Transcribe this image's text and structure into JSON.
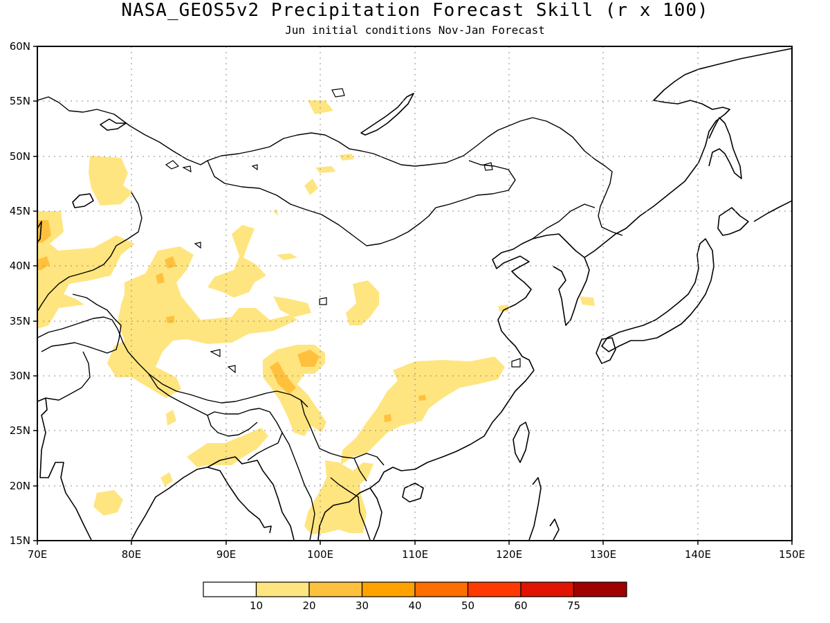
{
  "title": "NASA_GEOS5v2 Precipitation Forecast Skill (r x 100)",
  "subtitle": "Jun initial conditions  Nov-Jan Forecast",
  "map": {
    "lon_range": [
      70,
      150
    ],
    "lat_range": [
      15,
      60
    ],
    "lon_ticks": [
      "70E",
      "80E",
      "90E",
      "100E",
      "110E",
      "120E",
      "130E",
      "140E",
      "150E"
    ],
    "lat_ticks": [
      "60N",
      "55N",
      "50N",
      "45N",
      "40N",
      "35N",
      "30N",
      "25N",
      "20N",
      "15N"
    ],
    "gridlines": true
  },
  "legend": {
    "colors": [
      "#ffffff",
      "#ffe57f",
      "#ffc13d",
      "#ffa200",
      "#ff6e00",
      "#ff3a00",
      "#e01400",
      "#a00000"
    ],
    "labels": [
      "10",
      "20",
      "30",
      "40",
      "50",
      "60",
      "75"
    ]
  },
  "contours": [
    {
      "level": "10-20",
      "color": "#ffe57f"
    },
    {
      "level": "20-30",
      "color": "#ffc13d"
    }
  ]
}
